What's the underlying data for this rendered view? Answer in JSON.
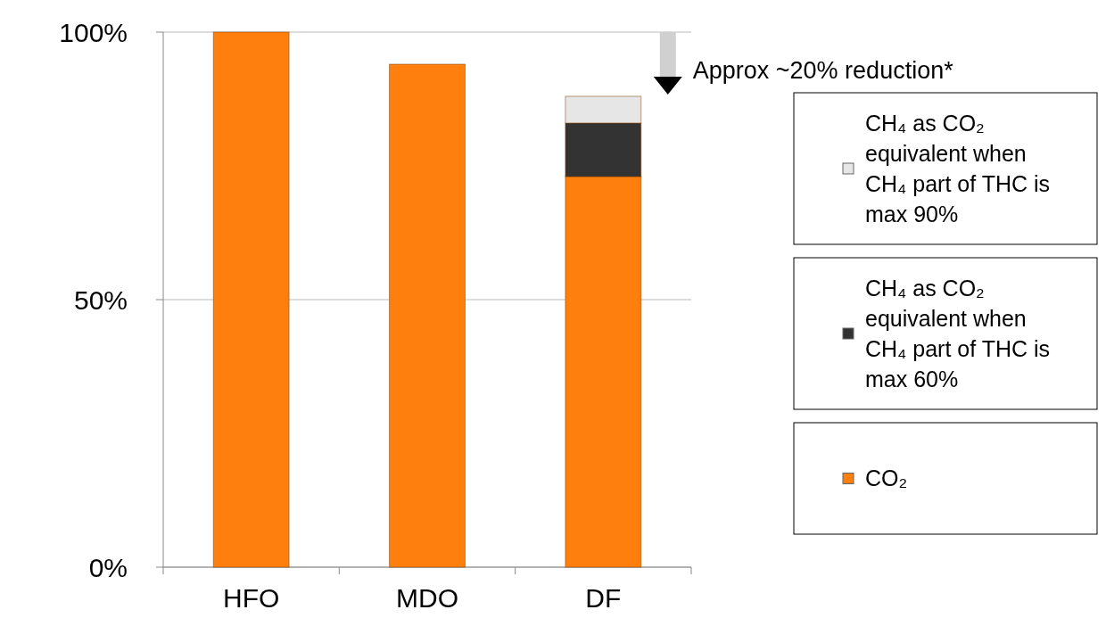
{
  "chart_data": {
    "type": "bar",
    "stacked": true,
    "categories": [
      "HFO",
      "MDO",
      "DF"
    ],
    "series": [
      {
        "name": "CO₂",
        "color": "#ff7f0e",
        "values": [
          100,
          94,
          73
        ]
      },
      {
        "name": "CH₄ as CO₂ equivalent when CH₄ part of THC is max 60%",
        "color": "#333333",
        "values": [
          0,
          0,
          10
        ]
      },
      {
        "name": "CH₄ as CO₂ equivalent when CH₄ part of THC is max 90%",
        "color": "#e6e6e6",
        "values": [
          0,
          0,
          5
        ]
      }
    ],
    "ylim": [
      0,
      100
    ],
    "yticks": [
      {
        "value": 0,
        "label": "0%"
      },
      {
        "value": 50,
        "label": "50%"
      },
      {
        "value": 100,
        "label": "100%"
      }
    ],
    "grid": "y",
    "legend": "right",
    "annotations": [
      "Approx ~20% reduction*"
    ]
  }
}
